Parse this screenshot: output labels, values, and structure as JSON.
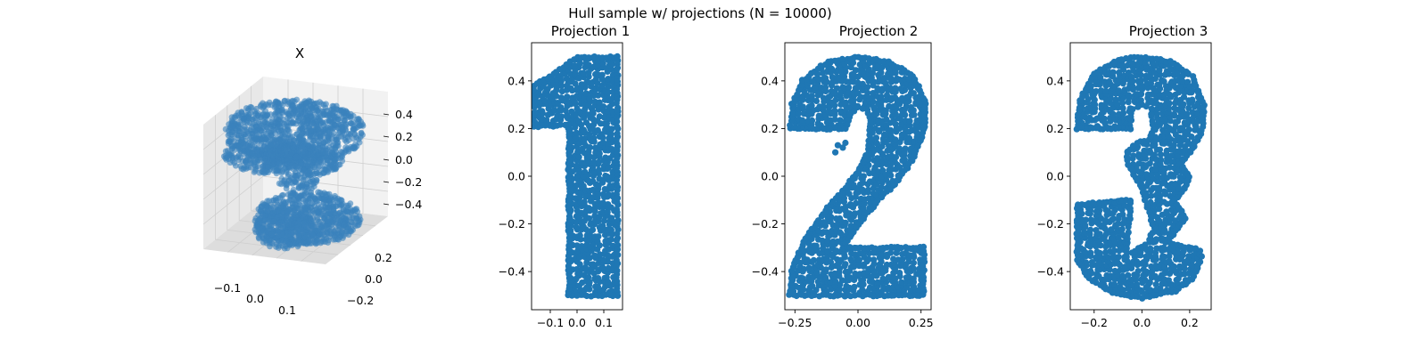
{
  "figure": {
    "suptitle": "Hull sample w/ projections (N = 10000)"
  },
  "colors": {
    "marker": "#1f77b4",
    "marker_3d": "#3a82bd",
    "pane_light": "#f2f2f2",
    "pane_mid": "#e8e8e8",
    "pane_dark": "#dddddd",
    "grid": "#cfcfcf",
    "axes": "#000000"
  },
  "chart_data": [
    {
      "type": "scatter",
      "projection": "3d",
      "title": "X",
      "marker_alpha": 0.6,
      "xlim": [
        -0.17,
        0.17
      ],
      "ylim": [
        -0.25,
        0.3
      ],
      "zlim": [
        -0.5,
        0.5
      ],
      "x_ticks": [
        "−0.1",
        "0.0",
        "0.1"
      ],
      "y_ticks": [
        "−0.2",
        "0.0",
        "0.2"
      ],
      "z_ticks": [
        "0.4",
        "0.2",
        "0.0",
        "−0.2",
        "−0.4"
      ],
      "description_of_points": "10000 points on the hull of a solid whose three projections are the digits 1, 2 and 3"
    },
    {
      "type": "scatter",
      "title": "Projection 1",
      "shape": "digit 1",
      "xlim": [
        -0.17,
        0.17
      ],
      "ylim": [
        -0.56,
        0.56
      ],
      "x_ticks": [
        {
          "value": -0.1,
          "label": "−0.1"
        },
        {
          "value": 0.0,
          "label": "0.0"
        },
        {
          "value": 0.1,
          "label": "0.1"
        }
      ],
      "y_ticks": [
        {
          "value": 0.4,
          "label": "0.4"
        },
        {
          "value": 0.2,
          "label": "0.2"
        },
        {
          "value": 0.0,
          "label": "0.0"
        },
        {
          "value": -0.2,
          "label": "−0.2"
        },
        {
          "value": -0.4,
          "label": "−0.4"
        }
      ],
      "outline": [
        [
          -0.16,
          0.38
        ],
        [
          -0.1,
          0.42
        ],
        [
          -0.04,
          0.47
        ],
        [
          0.0,
          0.5
        ],
        [
          0.15,
          0.5
        ],
        [
          0.15,
          -0.5
        ],
        [
          -0.03,
          -0.5
        ],
        [
          -0.03,
          0.22
        ],
        [
          -0.09,
          0.21
        ],
        [
          -0.16,
          0.21
        ]
      ]
    },
    {
      "type": "scatter",
      "title": "Projection 2",
      "shape": "digit 2",
      "xlim": [
        -0.29,
        0.29
      ],
      "ylim": [
        -0.56,
        0.56
      ],
      "x_ticks": [
        {
          "value": -0.25,
          "label": "−0.25"
        },
        {
          "value": 0.0,
          "label": "0.00"
        },
        {
          "value": 0.25,
          "label": "0.25"
        }
      ],
      "y_ticks": [
        {
          "value": 0.4,
          "label": "0.4"
        },
        {
          "value": 0.2,
          "label": "0.2"
        },
        {
          "value": 0.0,
          "label": "0.0"
        },
        {
          "value": -0.2,
          "label": "−0.2"
        },
        {
          "value": -0.4,
          "label": "−0.4"
        }
      ],
      "outline": [
        [
          -0.27,
          0.2
        ],
        [
          -0.26,
          0.3
        ],
        [
          -0.22,
          0.4
        ],
        [
          -0.12,
          0.48
        ],
        [
          0.0,
          0.5
        ],
        [
          0.12,
          0.48
        ],
        [
          0.22,
          0.42
        ],
        [
          0.27,
          0.3
        ],
        [
          0.26,
          0.18
        ],
        [
          0.22,
          0.08
        ],
        [
          0.16,
          -0.02
        ],
        [
          0.08,
          -0.1
        ],
        [
          0.02,
          -0.18
        ],
        [
          -0.04,
          -0.27
        ],
        [
          -0.06,
          -0.3
        ],
        [
          0.26,
          -0.3
        ],
        [
          0.26,
          -0.5
        ],
        [
          -0.27,
          -0.5
        ],
        [
          -0.26,
          -0.38
        ],
        [
          -0.2,
          -0.25
        ],
        [
          -0.12,
          -0.13
        ],
        [
          -0.05,
          -0.05
        ],
        [
          0.0,
          0.02
        ],
        [
          0.04,
          0.1
        ],
        [
          0.05,
          0.22
        ],
        [
          0.04,
          0.28
        ],
        [
          0.0,
          0.29
        ],
        [
          -0.03,
          0.26
        ],
        [
          -0.05,
          0.2
        ]
      ],
      "extra_points": [
        [
          -0.08,
          0.13
        ],
        [
          -0.06,
          0.12
        ],
        [
          -0.09,
          0.1
        ],
        [
          -0.05,
          0.14
        ]
      ]
    },
    {
      "type": "scatter",
      "title": "Projection 3",
      "shape": "digit 3",
      "xlim": [
        -0.3,
        0.29
      ],
      "ylim": [
        -0.56,
        0.56
      ],
      "x_ticks": [
        {
          "value": -0.2,
          "label": "−0.2"
        },
        {
          "value": 0.0,
          "label": "0.0"
        },
        {
          "value": 0.2,
          "label": "0.2"
        }
      ],
      "y_ticks": [
        {
          "value": 0.4,
          "label": "0.4"
        },
        {
          "value": 0.2,
          "label": "0.2"
        },
        {
          "value": 0.0,
          "label": "0.0"
        },
        {
          "value": -0.2,
          "label": "−0.2"
        },
        {
          "value": -0.4,
          "label": "−0.4"
        }
      ],
      "outline": [
        [
          -0.27,
          0.2
        ],
        [
          -0.26,
          0.32
        ],
        [
          -0.2,
          0.43
        ],
        [
          -0.1,
          0.49
        ],
        [
          0.0,
          0.5
        ],
        [
          0.12,
          0.48
        ],
        [
          0.21,
          0.42
        ],
        [
          0.26,
          0.3
        ],
        [
          0.25,
          0.18
        ],
        [
          0.2,
          0.1
        ],
        [
          0.16,
          0.05
        ],
        [
          0.2,
          0.0
        ],
        [
          0.18,
          -0.05
        ],
        [
          0.14,
          -0.1
        ],
        [
          0.18,
          -0.18
        ],
        [
          0.1,
          -0.28
        ],
        [
          0.24,
          -0.31
        ],
        [
          0.25,
          -0.34
        ],
        [
          0.22,
          -0.42
        ],
        [
          0.14,
          -0.48
        ],
        [
          0.0,
          -0.51
        ],
        [
          -0.12,
          -0.49
        ],
        [
          -0.22,
          -0.43
        ],
        [
          -0.27,
          -0.35
        ],
        [
          -0.27,
          -0.12
        ],
        [
          -0.05,
          -0.1
        ],
        [
          -0.05,
          -0.18
        ],
        [
          -0.06,
          -0.25
        ],
        [
          -0.06,
          -0.3
        ],
        [
          -0.04,
          -0.32
        ],
        [
          0.03,
          -0.28
        ],
        [
          0.05,
          -0.22
        ],
        [
          0.03,
          -0.15
        ],
        [
          0.0,
          -0.05
        ],
        [
          -0.04,
          0.02
        ],
        [
          -0.06,
          0.05
        ],
        [
          -0.06,
          0.1
        ],
        [
          -0.02,
          0.14
        ],
        [
          0.03,
          0.15
        ],
        [
          0.05,
          0.2
        ],
        [
          0.04,
          0.28
        ],
        [
          0.0,
          0.3
        ],
        [
          -0.04,
          0.28
        ],
        [
          -0.05,
          0.2
        ]
      ]
    }
  ]
}
